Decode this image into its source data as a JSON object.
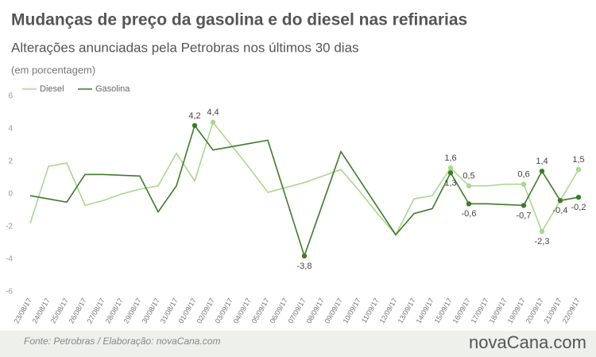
{
  "chart_data": {
    "type": "line",
    "title": "Mudanças de preço da gasolina e do diesel nas refinarias",
    "subtitle": "Alterações anunciadas pela Petrobras nos últimos 30 dias",
    "unit_note": "(em porcentagem)",
    "source": "Fonte:  Petrobras  / Elaboração:  novaCana.com",
    "brand": "novaCana.com",
    "categories": [
      "23/08/17",
      "24/08/17",
      "25/08/17",
      "26/08/17",
      "27/08/17",
      "28/08/17",
      "29/08/17",
      "30/08/17",
      "31/08/17",
      "01/09/17",
      "02/09/17",
      "03/09/17",
      "04/09/17",
      "05/09/17",
      "06/09/17",
      "07/09/17",
      "08/09/17",
      "09/09/17",
      "10/09/17",
      "11/09/17",
      "12/09/17",
      "13/09/17",
      "14/09/17",
      "15/09/17",
      "16/09/17",
      "17/09/17",
      "18/09/17",
      "19/09/17",
      "20/09/17",
      "21/09/17",
      "22/09/17"
    ],
    "series": [
      {
        "name": "Diesel",
        "color": "#a9d88f",
        "values": [
          -1.8,
          1.7,
          1.9,
          -0.7,
          -0.4,
          0,
          0.3,
          0.5,
          2.5,
          0.8,
          4.4,
          3.0,
          1.6,
          0.1,
          0.4,
          0.7,
          1.1,
          1.5,
          0.2,
          -1.2,
          -2.5,
          -0.3,
          -0.1,
          1.6,
          0.5,
          0.5,
          0.6,
          0.6,
          -2.3,
          -0.4,
          1.5
        ],
        "value_labels": [
          null,
          null,
          null,
          null,
          null,
          null,
          null,
          null,
          null,
          null,
          "4,4",
          null,
          null,
          null,
          null,
          null,
          null,
          null,
          null,
          null,
          null,
          null,
          null,
          "1,6",
          "0,5",
          null,
          null,
          "0,6",
          "-2,3",
          null,
          "1,5"
        ]
      },
      {
        "name": "Gasolina",
        "color": "#3f7a2c",
        "values": [
          -0.1,
          -0.3,
          -0.5,
          1.2,
          1.2,
          1.15,
          1.1,
          -1.1,
          0.5,
          4.2,
          2.7,
          2.9,
          3.1,
          3.3,
          -0.25,
          -3.8,
          -0.6,
          2.6,
          0.9,
          -0.8,
          -2.5,
          -1.2,
          -0.9,
          1.3,
          -0.6,
          -0.6,
          -0.65,
          -0.7,
          1.4,
          -0.4,
          -0.2
        ],
        "value_labels": [
          null,
          null,
          null,
          null,
          null,
          null,
          null,
          null,
          null,
          "4,2",
          null,
          null,
          null,
          null,
          null,
          "-3,8",
          null,
          null,
          null,
          null,
          null,
          null,
          null,
          "1,3",
          "-0,6",
          null,
          null,
          "-0,7",
          "1,4",
          "-0,4",
          "-0,2"
        ]
      }
    ],
    "ylim": [
      -6,
      6
    ],
    "yticks": [
      -6,
      -4,
      -2,
      0,
      2,
      4,
      6
    ],
    "grid": false,
    "legend": "top-left"
  }
}
